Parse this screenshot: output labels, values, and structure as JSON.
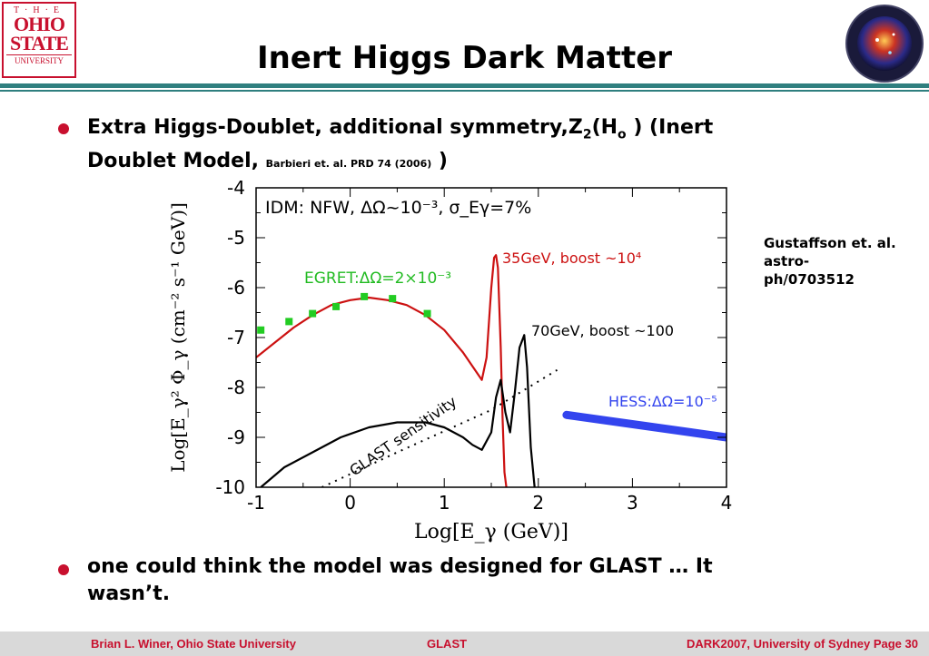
{
  "header": {
    "title": "Inert Higgs Dark Matter",
    "logo_left": {
      "line1": "T·H·E",
      "line2": "OHIO",
      "line3": "STATE",
      "line4": "UNIVERSITY"
    },
    "logo_right_icon": "glast-dark-matter-logo"
  },
  "bullets": [
    {
      "line1_a": "Extra Higgs-Doublet, additional symmetry,Z",
      "line1_sub": "2",
      "line1_b": "(H",
      "line1_sub2": "o",
      "line1_c": " ) (Inert",
      "line2_a": "Doublet Model, ",
      "line2_ref": "Barbieri et. al. PRD 74 (2006)",
      "line2_end": " )"
    },
    {
      "line1": "one could think the model was designed for GLAST … It",
      "line2": "wasn’t."
    }
  ],
  "note": {
    "line1": "Gustaffson et. al.",
    "line2": "astro-",
    "line3": "ph/0703512"
  },
  "footer": {
    "left": "Brian L. Winer, Ohio State University",
    "center": "GLAST",
    "right": "DARK2007,  University of Sydney   Page   30"
  },
  "chart_data": {
    "type": "line",
    "xlabel": "Log[E_γ  (GeV)]",
    "ylabel": "Log[E_γ² Φ_γ  (cm⁻² s⁻¹ GeV)]",
    "xlim": [
      -1,
      4
    ],
    "ylim": [
      -10,
      -4
    ],
    "xticks": [
      "-1",
      "0",
      "1",
      "2",
      "3",
      "4"
    ],
    "yticks": [
      "-4",
      "-5",
      "-6",
      "-7",
      "-8",
      "-9",
      "-10"
    ],
    "annotation_main": "IDM: NFW, ΔΩ~10⁻³, σ_Eγ=7%",
    "series": [
      {
        "name": "35GeV, boost ~10⁴",
        "color": "#cc1111",
        "x": [
          -1.0,
          -0.8,
          -0.6,
          -0.4,
          -0.2,
          0.0,
          0.2,
          0.4,
          0.6,
          0.8,
          1.0,
          1.2,
          1.4,
          1.45,
          1.5,
          1.53,
          1.55,
          1.57,
          1.6,
          1.62,
          1.64,
          1.66
        ],
        "y": [
          -7.4,
          -7.1,
          -6.8,
          -6.55,
          -6.35,
          -6.25,
          -6.2,
          -6.25,
          -6.35,
          -6.55,
          -6.85,
          -7.3,
          -7.85,
          -7.4,
          -6.0,
          -5.4,
          -5.35,
          -5.6,
          -7.2,
          -8.6,
          -9.7,
          -10.0
        ]
      },
      {
        "name": "70GeV, boost ~100",
        "color": "#000000",
        "x": [
          -0.95,
          -0.7,
          -0.4,
          -0.1,
          0.2,
          0.5,
          0.8,
          1.0,
          1.2,
          1.3,
          1.4,
          1.5,
          1.55,
          1.6,
          1.65,
          1.7,
          1.75,
          1.8,
          1.85,
          1.88,
          1.92,
          1.96
        ],
        "y": [
          -10.0,
          -9.6,
          -9.3,
          -9.0,
          -8.8,
          -8.7,
          -8.7,
          -8.8,
          -9.0,
          -9.15,
          -9.25,
          -8.9,
          -8.2,
          -7.85,
          -8.5,
          -8.9,
          -8.1,
          -7.2,
          -6.95,
          -7.6,
          -9.2,
          -10.0
        ]
      },
      {
        "name": "GLAST sensitivity",
        "color": "#000000",
        "dash": true,
        "x": [
          -0.3,
          0.5,
          1.5,
          2.2
        ],
        "y": [
          -10.0,
          -9.3,
          -8.45,
          -7.65
        ]
      },
      {
        "name": "HESS:ΔΩ=10⁻⁵",
        "color": "#3344ee",
        "x": [
          2.3,
          4.0
        ],
        "y": [
          -8.55,
          -9.0
        ]
      },
      {
        "name": "EGRET:ΔΩ=2×10⁻³",
        "color": "#22cc22",
        "markers": true,
        "x": [
          -0.95,
          -0.65,
          -0.4,
          -0.15,
          0.15,
          0.45,
          0.82
        ],
        "y": [
          -6.85,
          -6.68,
          -6.52,
          -6.38,
          -6.18,
          -6.22,
          -6.52
        ]
      }
    ]
  }
}
